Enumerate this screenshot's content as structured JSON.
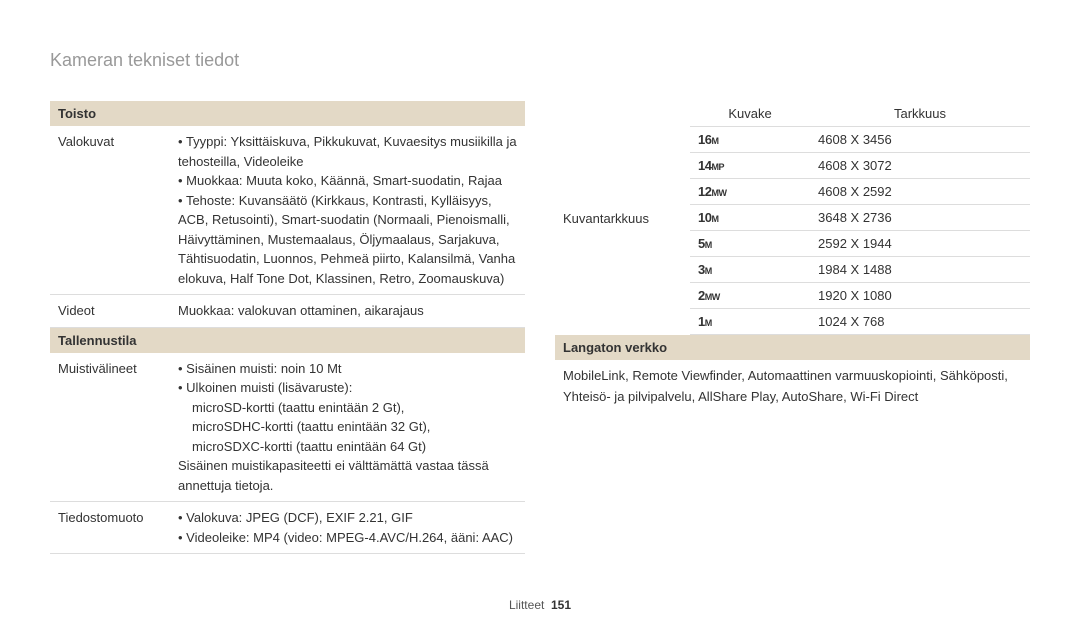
{
  "title": "Kameran tekniset tiedot",
  "sections": {
    "playback": {
      "header": "Toisto",
      "rows": {
        "photos": {
          "label": "Valokuvat",
          "bullets": [
            "Tyyppi: Yksittäiskuva, Pikkukuvat, Kuvaesitys musiikilla ja tehosteilla, Videoleike",
            "Muokkaa: Muuta koko, Käännä, Smart-suodatin, Rajaa",
            "Tehoste: Kuvansäätö (Kirkkaus, Kontrasti, Kylläisyys, ACB, Retusointi), Smart-suodatin (Normaali, Pienoismalli, Häivyttäminen, Mustemaalaus, Öljymaalaus, Sarjakuva, Tähtisuodatin, Luonnos, Pehmeä piirto, Kalansilmä, Vanha elokuva, Half Tone Dot, Klassinen, Retro, Zoomauskuva)"
          ]
        },
        "videos": {
          "label": "Videot",
          "value": "Muokkaa: valokuvan ottaminen, aikarajaus"
        }
      }
    },
    "storage": {
      "header": "Tallennustila",
      "rows": {
        "media": {
          "label": "Muistivälineet",
          "bullets": [
            "Sisäinen muisti: noin 10 Mt",
            "Ulkoinen muisti (lisävaruste):"
          ],
          "sublines": [
            "microSD-kortti (taattu enintään 2 Gt),",
            "microSDHC-kortti (taattu enintään 32 Gt),",
            "microSDXC-kortti (taattu enintään 64 Gt)"
          ],
          "note": "Sisäinen muistikapasiteetti ei välttämättä vastaa tässä annettuja tietoja."
        },
        "format": {
          "label": "Tiedostomuoto",
          "bullets": [
            "Valokuva: JPEG (DCF), EXIF 2.21, GIF",
            "Videoleike: MP4 (video: MPEG-4.AVC/H.264, ääni: AAC)"
          ]
        }
      }
    },
    "resolution": {
      "label": "Kuvantarkkuus",
      "header_icon": "Kuvake",
      "header_res": "Tarkkuus",
      "rows": [
        {
          "size": "16",
          "suffix": "M",
          "res": "4608 X 3456"
        },
        {
          "size": "14",
          "suffix": "MP",
          "res": "4608 X 3072"
        },
        {
          "size": "12",
          "suffix": "MW",
          "res": "4608 X 2592"
        },
        {
          "size": "10",
          "suffix": "M",
          "res": "3648 X 2736"
        },
        {
          "size": "5",
          "suffix": "M",
          "res": "2592 X 1944"
        },
        {
          "size": "3",
          "suffix": "M",
          "res": "1984 X 1488"
        },
        {
          "size": "2",
          "suffix": "MW",
          "res": "1920 X 1080"
        },
        {
          "size": "1",
          "suffix": "M",
          "res": "1024 X 768"
        }
      ]
    },
    "wireless": {
      "header": "Langaton verkko",
      "text": "MobileLink, Remote Viewfinder, Automaattinen varmuuskopiointi, Sähköposti, Yhteisö- ja pilvipalvelu, AllShare Play, AutoShare, Wi-Fi Direct"
    }
  },
  "footer": {
    "section": "Liitteet",
    "page": "151"
  }
}
